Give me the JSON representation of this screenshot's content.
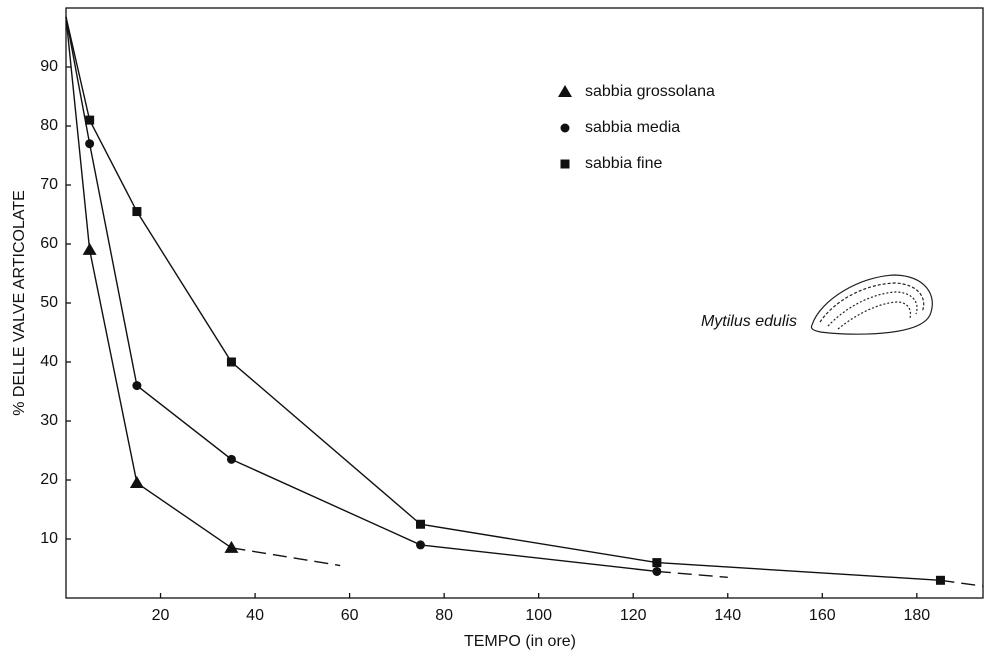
{
  "chart_data": {
    "type": "line",
    "x_label": "TEMPO (in ore)",
    "y_label": "% DELLE VALVE ARTICOLATE",
    "annotation": "Mytilus edulis",
    "xlim": [
      0,
      194
    ],
    "ylim": [
      0,
      100
    ],
    "xticks": [
      20,
      40,
      60,
      80,
      100,
      120,
      140,
      160,
      180
    ],
    "yticks": [
      10,
      20,
      30,
      40,
      50,
      60,
      70,
      80,
      90
    ],
    "series": [
      {
        "name": "sabbia grossolana",
        "color": "#111111",
        "marker": "triangle",
        "x": [
          0,
          5,
          15,
          35
        ],
        "values": [
          98.5,
          59,
          19.5,
          8.5
        ],
        "extension_x": 58,
        "extension_value": 5.5
      },
      {
        "name": "sabbia media",
        "color": "#111111",
        "marker": "circle",
        "x": [
          0,
          5,
          15,
          35,
          75,
          125
        ],
        "values": [
          98.5,
          77,
          36,
          23.5,
          9,
          4.5
        ],
        "extension_x": 140,
        "extension_value": 3.5
      },
      {
        "name": "sabbia fine",
        "color": "#111111",
        "marker": "square",
        "x": [
          0,
          5,
          15,
          35,
          75,
          125,
          185
        ],
        "values": [
          98.5,
          81,
          65.5,
          40,
          12.5,
          6,
          3
        ],
        "extension_x": 194,
        "extension_value": 2
      }
    ]
  }
}
